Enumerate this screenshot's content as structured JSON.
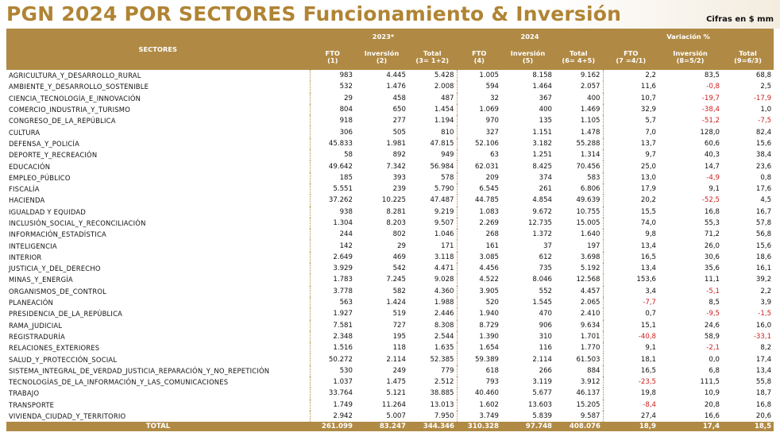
{
  "header": {
    "title": "PGN 2024 POR SECTORES Funcionamiento & Inversión",
    "subtitle": "Cifras en $ mm"
  },
  "table": {
    "sectors_label": "SECTORES",
    "groups": [
      "2023*",
      "2024",
      "Variación %"
    ],
    "columns": [
      {
        "name": "FTO",
        "sub": "(1)"
      },
      {
        "name": "Inversión",
        "sub": "(2)"
      },
      {
        "name": "Total",
        "sub": "(3= 1+2)"
      },
      {
        "name": "FTO",
        "sub": "(4)"
      },
      {
        "name": "Inversión",
        "sub": "(5)"
      },
      {
        "name": "Total",
        "sub": "(6= 4+5)"
      },
      {
        "name": "FTO",
        "sub": "(7 =4/1)"
      },
      {
        "name": "Inversión",
        "sub": "(8=5/2)"
      },
      {
        "name": "Total",
        "sub": "(9=6/3)"
      }
    ],
    "rows": [
      {
        "sector": "AGRICULTURA_Y_DESARROLLO_RURAL",
        "values": [
          "983",
          "4.445",
          "5.428",
          "1.005",
          "8.158",
          "9.162",
          "2,2",
          "83,5",
          "68,8"
        ]
      },
      {
        "sector": "AMBIENTE_Y_DESARROLLO_SOSTENIBLE",
        "values": [
          "532",
          "1.476",
          "2.008",
          "594",
          "1.464",
          "2.057",
          "11,6",
          "-0,8",
          "2,5"
        ]
      },
      {
        "sector": "CIENCIA_TECNOLOGÍA_E_INNOVACIÓN",
        "values": [
          "29",
          "458",
          "487",
          "32",
          "367",
          "400",
          "10,7",
          "-19,7",
          "-17,9"
        ]
      },
      {
        "sector": "COMERCIO_INDUSTRIA_Y_TURISMO",
        "values": [
          "804",
          "650",
          "1.454",
          "1.069",
          "400",
          "1.469",
          "32,9",
          "-38,4",
          "1,0"
        ]
      },
      {
        "sector": "CONGRESO_DE_LA_REPÚBLICA",
        "values": [
          "918",
          "277",
          "1.194",
          "970",
          "135",
          "1.105",
          "5,7",
          "-51,2",
          "-7,5"
        ]
      },
      {
        "sector": "CULTURA",
        "values": [
          "306",
          "505",
          "810",
          "327",
          "1.151",
          "1.478",
          "7,0",
          "128,0",
          "82,4"
        ]
      },
      {
        "sector": "DEFENSA_Y_POLICÍA",
        "values": [
          "45.833",
          "1.981",
          "47.815",
          "52.106",
          "3.182",
          "55.288",
          "13,7",
          "60,6",
          "15,6"
        ]
      },
      {
        "sector": "DEPORTE_Y_RECREACIÓN",
        "values": [
          "58",
          "892",
          "949",
          "63",
          "1.251",
          "1.314",
          "9,7",
          "40,3",
          "38,4"
        ]
      },
      {
        "sector": "EDUCACIÓN",
        "values": [
          "49.642",
          "7.342",
          "56.984",
          "62.031",
          "8.425",
          "70.456",
          "25,0",
          "14,7",
          "23,6"
        ]
      },
      {
        "sector": "EMPLEO_PÚBLICO",
        "values": [
          "185",
          "393",
          "578",
          "209",
          "374",
          "583",
          "13,0",
          "-4,9",
          "0,8"
        ]
      },
      {
        "sector": "FISCALÍA",
        "values": [
          "5.551",
          "239",
          "5.790",
          "6.545",
          "261",
          "6.806",
          "17,9",
          "9,1",
          "17,6"
        ]
      },
      {
        "sector": "HACIENDA",
        "values": [
          "37.262",
          "10.225",
          "47.487",
          "44.785",
          "4.854",
          "49.639",
          "20,2",
          "-52,5",
          "4,5"
        ]
      },
      {
        "sector": "IGUALDAD Y EQUIDAD",
        "values": [
          "938",
          "8.281",
          "9.219",
          "1.083",
          "9.672",
          "10.755",
          "15,5",
          "16,8",
          "16,7"
        ]
      },
      {
        "sector": "INCLUSIÓN_SOCIAL_Y_RECONCILIACIÓN",
        "values": [
          "1.304",
          "8.203",
          "9.507",
          "2.269",
          "12.735",
          "15.005",
          "74,0",
          "55,3",
          "57,8"
        ]
      },
      {
        "sector": "INFORMACIÓN_ESTADÍSTICA",
        "values": [
          "244",
          "802",
          "1.046",
          "268",
          "1.372",
          "1.640",
          "9,8",
          "71,2",
          "56,8"
        ]
      },
      {
        "sector": "INTELIGENCIA",
        "values": [
          "142",
          "29",
          "171",
          "161",
          "37",
          "197",
          "13,4",
          "26,0",
          "15,6"
        ]
      },
      {
        "sector": "INTERIOR",
        "values": [
          "2.649",
          "469",
          "3.118",
          "3.085",
          "612",
          "3.698",
          "16,5",
          "30,6",
          "18,6"
        ]
      },
      {
        "sector": "JUSTICIA_Y_DEL_DERECHO",
        "values": [
          "3.929",
          "542",
          "4.471",
          "4.456",
          "735",
          "5.192",
          "13,4",
          "35,6",
          "16,1"
        ]
      },
      {
        "sector": "MINAS_Y_ENERGÍA",
        "values": [
          "1.783",
          "7.245",
          "9.028",
          "4.522",
          "8.046",
          "12.568",
          "153,6",
          "11,1",
          "39,2"
        ]
      },
      {
        "sector": "ORGANISMOS_DE_CONTROL",
        "values": [
          "3.778",
          "582",
          "4.360",
          "3.905",
          "552",
          "4.457",
          "3,4",
          "-5,1",
          "2,2"
        ]
      },
      {
        "sector": "PLANEACIÓN",
        "values": [
          "563",
          "1.424",
          "1.988",
          "520",
          "1.545",
          "2.065",
          "-7,7",
          "8,5",
          "3,9"
        ]
      },
      {
        "sector": "PRESIDENCIA_DE_LA_REPÚBLICA",
        "values": [
          "1.927",
          "519",
          "2.446",
          "1.940",
          "470",
          "2.410",
          "0,7",
          "-9,5",
          "-1,5"
        ]
      },
      {
        "sector": "RAMA_JUDICIAL",
        "values": [
          "7.581",
          "727",
          "8.308",
          "8.729",
          "906",
          "9.634",
          "15,1",
          "24,6",
          "16,0"
        ]
      },
      {
        "sector": "REGISTRADURÍA",
        "values": [
          "2.348",
          "195",
          "2.544",
          "1.390",
          "310",
          "1.701",
          "-40,8",
          "58,9",
          "-33,1"
        ]
      },
      {
        "sector": "RELACIONES_EXTERIORES",
        "values": [
          "1.516",
          "118",
          "1.635",
          "1.654",
          "116",
          "1.770",
          "9,1",
          "-2,1",
          "8,2"
        ]
      },
      {
        "sector": "SALUD_Y_PROTECCIÓN_SOCIAL",
        "values": [
          "50.272",
          "2.114",
          "52.385",
          "59.389",
          "2.114",
          "61.503",
          "18,1",
          "0,0",
          "17,4"
        ]
      },
      {
        "sector": "SISTEMA_INTEGRAL_DE_VERDAD_JUSTICIA_REPARACIÓN_Y_NO_REPETICIÓN",
        "values": [
          "530",
          "249",
          "779",
          "618",
          "266",
          "884",
          "16,5",
          "6,8",
          "13,4"
        ]
      },
      {
        "sector": "TECNOLOGÍAS_DE_LA_INFORMACIÓN_Y_LAS_COMUNICACIONES",
        "values": [
          "1.037",
          "1.475",
          "2.512",
          "793",
          "3.119",
          "3.912",
          "-23,5",
          "111,5",
          "55,8"
        ]
      },
      {
        "sector": "TRABAJO",
        "values": [
          "33.764",
          "5.121",
          "38.885",
          "40.460",
          "5.677",
          "46.137",
          "19,8",
          "10,9",
          "18,7"
        ]
      },
      {
        "sector": "TRANSPORTE",
        "values": [
          "1.749",
          "11.264",
          "13.013",
          "1.602",
          "13.603",
          "15.205",
          "-8,4",
          "20,8",
          "16,8"
        ]
      },
      {
        "sector": "VIVIENDA_CIUDAD_Y_TERRITORIO",
        "values": [
          "2.942",
          "5.007",
          "7.950",
          "3.749",
          "5.839",
          "9.587",
          "27,4",
          "16,6",
          "20,6"
        ]
      }
    ],
    "total": {
      "label": "TOTAL",
      "values": [
        "261.099",
        "83.247",
        "344.346",
        "310.328",
        "97.748",
        "408.076",
        "18,9",
        "17,4",
        "18,5"
      ]
    },
    "negative_color": "#cc1f1f",
    "header_color": "#b08a45",
    "title_color": "#b08434"
  }
}
